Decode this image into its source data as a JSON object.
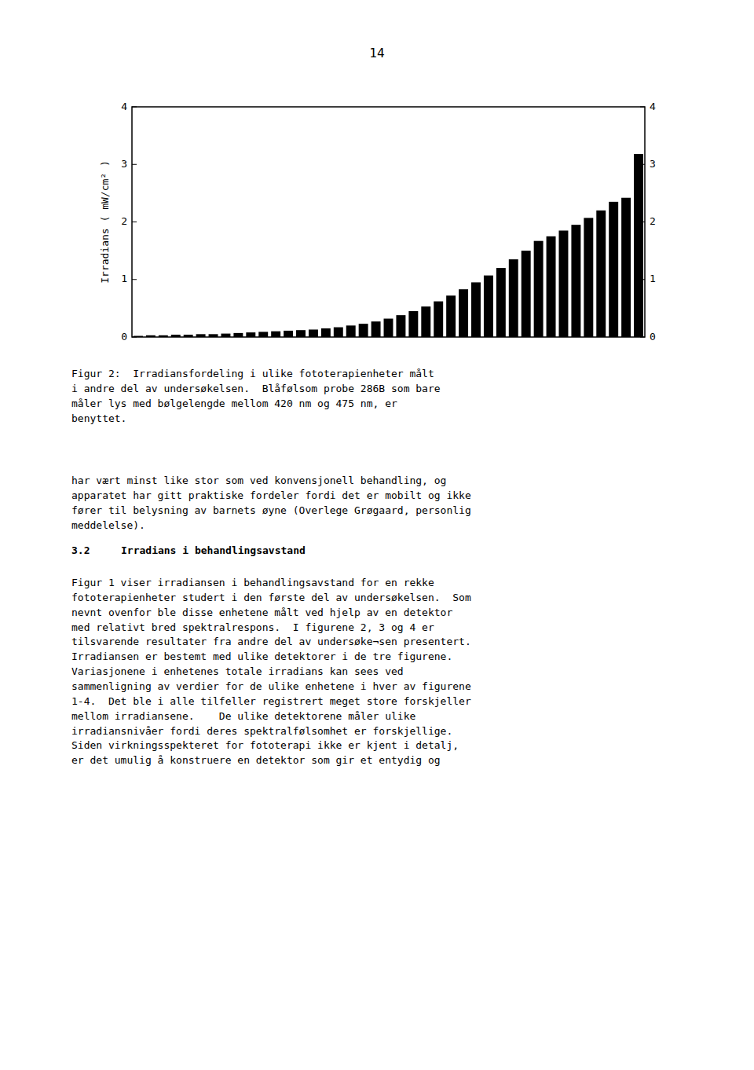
{
  "chart_data": {
    "type": "bar",
    "y_label": "Irradians ( mW/cm² )",
    "categories": [
      null,
      null,
      null,
      null,
      null,
      null,
      null,
      null,
      null,
      null,
      null,
      null,
      null,
      null,
      null,
      null,
      null,
      null,
      null,
      null,
      null,
      null,
      null,
      null,
      null,
      null,
      null,
      null,
      null,
      null,
      null,
      null,
      null,
      null,
      null,
      null,
      null,
      null,
      null,
      null,
      null
    ],
    "values": [
      0.02,
      0.03,
      0.03,
      0.04,
      0.04,
      0.05,
      0.05,
      0.06,
      0.07,
      0.08,
      0.09,
      0.1,
      0.11,
      0.12,
      0.13,
      0.15,
      0.17,
      0.2,
      0.23,
      0.27,
      0.32,
      0.38,
      0.45,
      0.53,
      0.62,
      0.72,
      0.83,
      0.95,
      1.07,
      1.2,
      1.35,
      1.5,
      1.67,
      1.75,
      1.85,
      1.95,
      2.07,
      2.2,
      2.35,
      2.42,
      3.18
    ],
    "color": "#000000",
    "ylim": [
      0,
      4
    ],
    "yticks": [
      0,
      1,
      2,
      3,
      4
    ],
    "grid": false,
    "tick_labels": "y",
    "annotations": [
      "14",
      "Figur 2:  Irradiansfordeling i ulike fototerapienheter målt\ni andre del av undersøkelsen.  Blåfølsom probe 286B som bare\nmåler lys med bølgelengde mellom 420 nm og 475 nm, er\nbenyttet.",
      "har vært minst like stor som ved konvensjonell behandling, og\napparatet har gitt praktiske fordeler fordi det er mobilt og ikke\nfører til belysning av barnets øyne (Overlege Grøgaard, personlig\nmeddelelse).",
      "3.2",
      "Irradians i behandlingsavstand",
      "Figur 1 viser irradiansen i behandlingsavstand for en rekke\nfototerapienheter studert i den første del av undersøkelsen.  Som\nnevnt ovenfor ble disse enhetene målt ved hjelp av en detektor\nmed relativt bred spektralrespons.  I figurene 2, 3 og 4 er\ntilsvarende resultater fra andre del av undersøke¬sen presentert.\nIrradiansen er bestemt med ulike detektorer i de tre figurene.\nVariasjonene i enhetenes totale irradians kan sees ved\nsammenligning av verdier for de ulike enhetene i hver av figurene\n1-4.  Det ble i alle tilfeller registrert meget store forskjeller\nmellom irradiansene.    De ulike detektorene måler ulike\nirradiansnivåer fordi deres spektralfølsomhet er forskjellige.\nSiden virkningsspekteret for fototerapi ikke er kjent i detalj,\ner det umulig å konstruere en detektor som gir et entydig og"
    ]
  }
}
